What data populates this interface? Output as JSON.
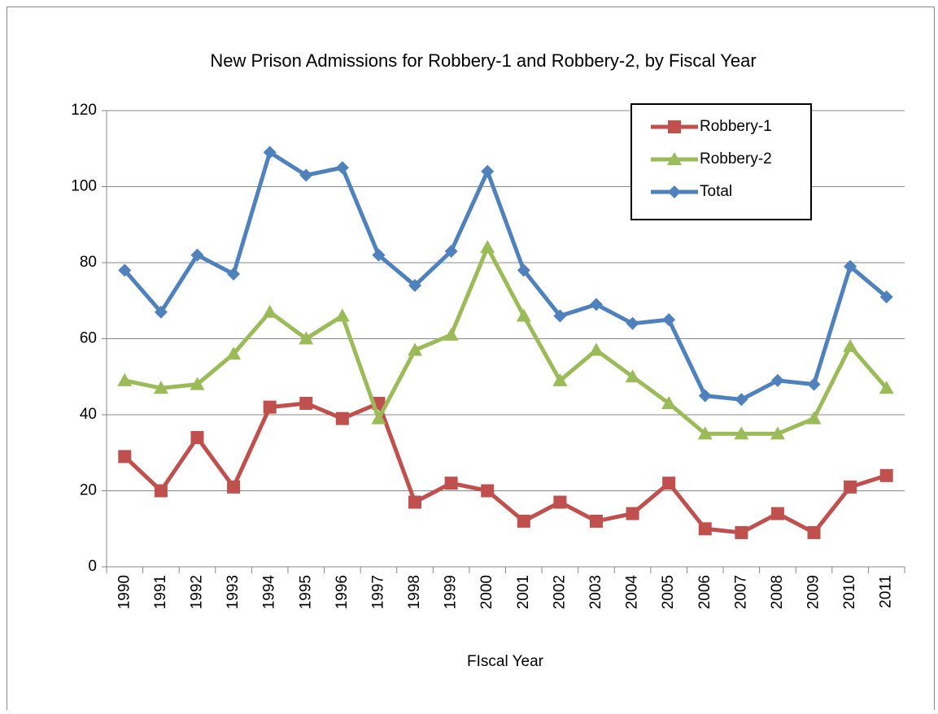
{
  "chart_data": {
    "type": "line",
    "title": "New Prison Admissions for Robbery-1 and Robbery-2, by Fiscal Year",
    "x_label": "FIscal Year",
    "categories": [
      "1990",
      "1991",
      "1992",
      "1993",
      "1994",
      "1995",
      "1996",
      "1997",
      "1998",
      "1999",
      "2000",
      "2001",
      "2002",
      "2003",
      "2004",
      "2005",
      "2006",
      "2007",
      "2008",
      "2009",
      "2010",
      "2011"
    ],
    "series": [
      {
        "name": "Robbery-1",
        "color": "#c0504d",
        "marker": "square",
        "values": [
          29,
          20,
          34,
          21,
          42,
          43,
          39,
          43,
          17,
          22,
          20,
          12,
          17,
          12,
          14,
          22,
          10,
          9,
          14,
          9,
          21,
          24
        ]
      },
      {
        "name": "Robbery-2",
        "color": "#9bbb59",
        "marker": "triangle",
        "values": [
          49,
          47,
          48,
          56,
          67,
          60,
          66,
          39,
          57,
          61,
          84,
          66,
          49,
          57,
          50,
          43,
          35,
          35,
          35,
          39,
          58,
          47
        ]
      },
      {
        "name": "Total",
        "color": "#4f81bd",
        "marker": "diamond",
        "values": [
          78,
          67,
          82,
          77,
          109,
          103,
          105,
          82,
          74,
          83,
          104,
          78,
          66,
          69,
          64,
          65,
          45,
          44,
          49,
          48,
          79,
          71
        ]
      }
    ],
    "ylim": [
      0,
      120
    ],
    "yticks": [
      0,
      20,
      40,
      60,
      80,
      100,
      120
    ],
    "grid": true,
    "legend": "top-right"
  }
}
